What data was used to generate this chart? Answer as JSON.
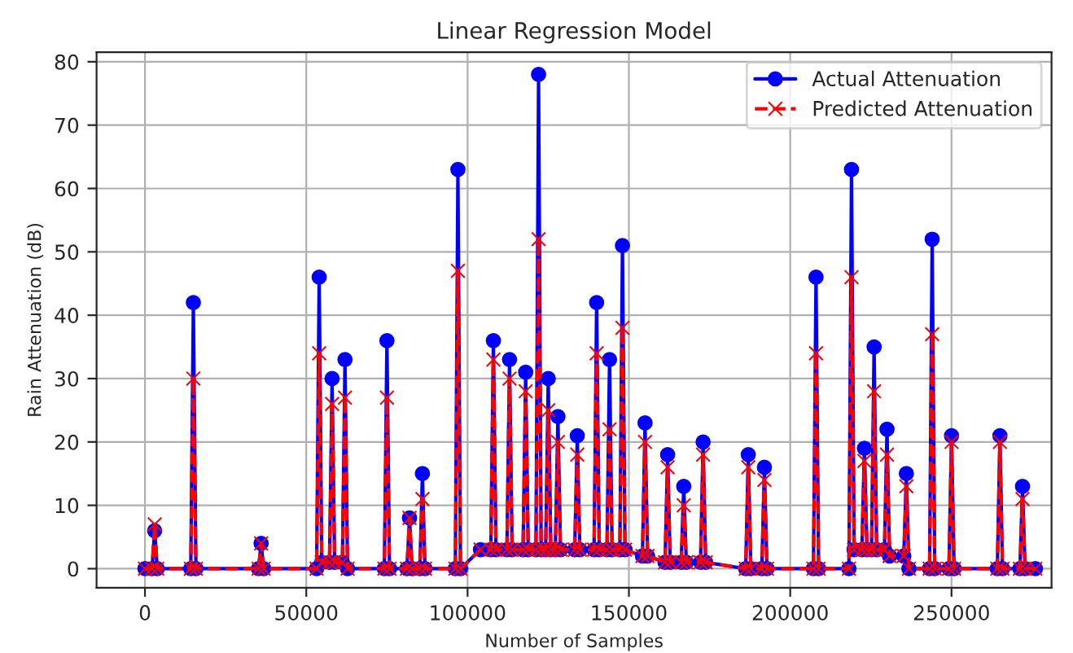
{
  "chart_data": {
    "type": "line",
    "title": "Linear Regression Model",
    "xlabel": "Number of Samples",
    "ylabel": "Rain Attenuation (dB)",
    "x": [
      0,
      2200,
      3000,
      3800,
      14200,
      15000,
      15800,
      35200,
      36000,
      36800,
      53200,
      54000,
      54800,
      57200,
      58000,
      58800,
      61200,
      62000,
      62800,
      74200,
      75000,
      75800,
      81200,
      82000,
      82800,
      85200,
      86000,
      86800,
      96200,
      97000,
      97800,
      104000,
      107200,
      108000,
      108800,
      112200,
      113000,
      113800,
      117200,
      118000,
      118800,
      121200,
      122000,
      122800,
      124200,
      125000,
      125800,
      127200,
      128000,
      128800,
      133200,
      134000,
      134800,
      139200,
      140000,
      140800,
      143200,
      144000,
      144800,
      147200,
      148000,
      148800,
      154200,
      155000,
      155800,
      161200,
      162000,
      162800,
      166200,
      167000,
      167800,
      172200,
      173000,
      173800,
      186200,
      187000,
      187800,
      191200,
      192000,
      192800,
      207200,
      208000,
      208800,
      218200,
      219000,
      219800,
      222200,
      223000,
      223800,
      225200,
      226000,
      226800,
      229200,
      230000,
      230800,
      235200,
      236000,
      236800,
      243200,
      244000,
      244800,
      249200,
      250000,
      250800,
      264200,
      265000,
      265800,
      271200,
      272000,
      272800,
      276000
    ],
    "series": [
      {
        "name": "Actual Attenuation",
        "color": "#0000ff",
        "marker": "circle",
        "line_style": "solid",
        "values": [
          0,
          0,
          6,
          0,
          0,
          42,
          0,
          0,
          4,
          0,
          0,
          46,
          1,
          1,
          30,
          1,
          1,
          33,
          0,
          0,
          36,
          0,
          0,
          8,
          0,
          0,
          15,
          0,
          0,
          63,
          0,
          3,
          3,
          36,
          3,
          3,
          33,
          3,
          3,
          31,
          3,
          3,
          78,
          3,
          3,
          30,
          3,
          3,
          24,
          3,
          3,
          21,
          3,
          3,
          42,
          3,
          3,
          33,
          3,
          3,
          51,
          3,
          2,
          23,
          2,
          1,
          18,
          1,
          1,
          13,
          1,
          1,
          20,
          1,
          0,
          18,
          0,
          0,
          16,
          0,
          0,
          46,
          0,
          0,
          63,
          3,
          3,
          19,
          3,
          3,
          35,
          3,
          3,
          22,
          2,
          2,
          15,
          0,
          0,
          52,
          0,
          0,
          21,
          0,
          0,
          21,
          0,
          0,
          13,
          0,
          0
        ]
      },
      {
        "name": "Predicted Attenuation",
        "color": "#ff0000",
        "marker": "cross",
        "line_style": "dashed",
        "values": [
          0,
          0,
          7,
          0,
          0,
          30,
          0,
          0,
          4,
          0,
          0,
          34,
          1,
          1,
          26,
          1,
          1,
          27,
          0,
          0,
          27,
          0,
          0,
          8,
          0,
          0,
          11,
          0,
          0,
          47,
          0,
          3,
          3,
          33,
          3,
          3,
          30,
          3,
          3,
          28,
          3,
          3,
          52,
          3,
          3,
          25,
          3,
          3,
          20,
          3,
          3,
          18,
          3,
          3,
          34,
          3,
          3,
          22,
          3,
          3,
          38,
          3,
          2,
          20,
          2,
          1,
          16,
          1,
          1,
          10,
          1,
          1,
          18,
          1,
          0,
          16,
          0,
          0,
          14,
          0,
          0,
          34,
          0,
          0,
          46,
          3,
          3,
          17,
          3,
          3,
          28,
          3,
          3,
          18,
          2,
          2,
          13,
          0,
          0,
          37,
          0,
          0,
          20,
          0,
          0,
          20,
          0,
          0,
          11,
          0,
          0
        ]
      }
    ],
    "xlim": [
      -15000,
      281000
    ],
    "ylim": [
      -3,
      81.5
    ],
    "xticks": [
      0,
      50000,
      100000,
      150000,
      200000,
      250000
    ],
    "yticks": [
      0,
      10,
      20,
      30,
      40,
      50,
      60,
      70,
      80
    ],
    "grid": true,
    "legend": "top right"
  }
}
